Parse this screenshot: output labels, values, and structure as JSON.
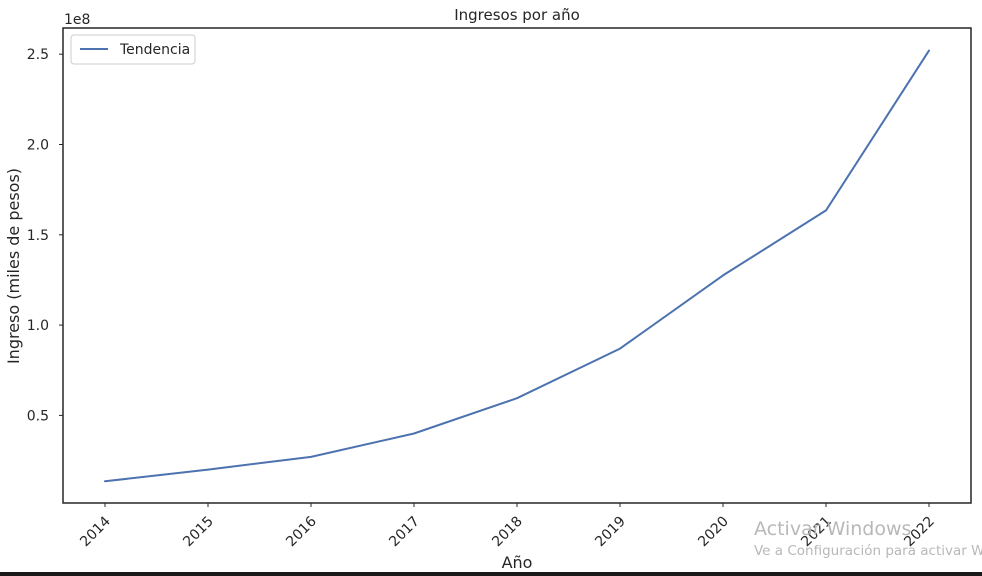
{
  "chart_data": {
    "type": "line",
    "title": "Ingresos por año",
    "xlabel": "Año",
    "ylabel": "Ingreso (miles de pesos)",
    "y_offset_label": "1e8",
    "categories": [
      "2014",
      "2015",
      "2016",
      "2017",
      "2018",
      "2019",
      "2020",
      "2021",
      "2022"
    ],
    "series": [
      {
        "name": "Tendencia",
        "color": "#4c72b0",
        "values": [
          13500000,
          20000000,
          27000000,
          40000000,
          59500000,
          87000000,
          127500000,
          163500000,
          252000000
        ]
      }
    ],
    "y_ticks": [
      50000000.0,
      100000000.0,
      150000000.0,
      200000000.0,
      250000000.0
    ],
    "y_tick_labels": [
      "0.5",
      "1.0",
      "1.5",
      "2.0",
      "2.5"
    ],
    "x_tick_rotation": -45,
    "ylim": [
      1500000,
      264500000
    ],
    "grid": false,
    "legend_position": "top-left"
  },
  "watermark": {
    "title": "Activar Windows",
    "subtitle": "Ve a Configuración para activar Windows."
  }
}
